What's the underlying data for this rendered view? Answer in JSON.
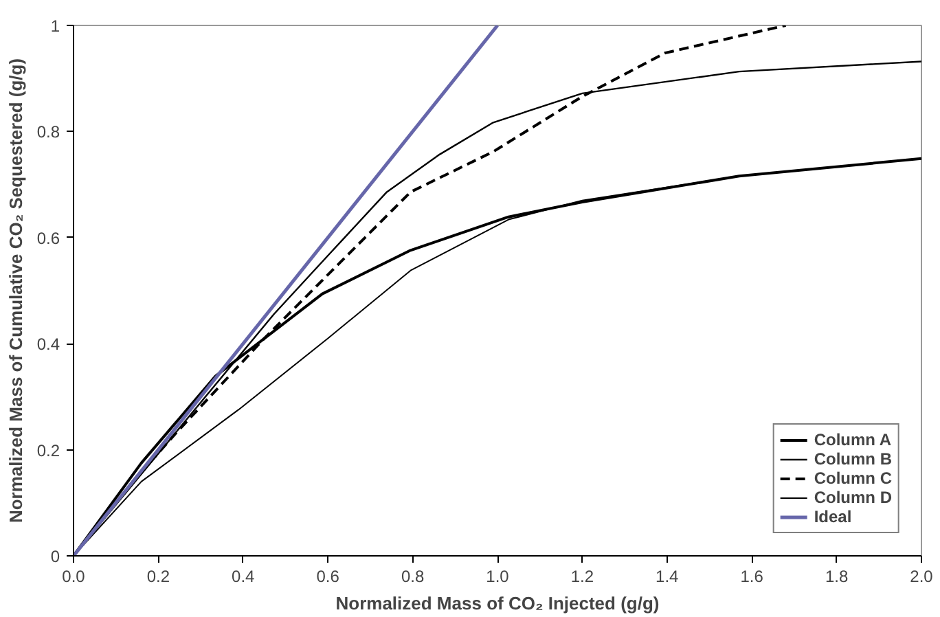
{
  "chart_data": {
    "type": "line",
    "xlabel": "Normalized Mass of CO₂ Injected (g/g)",
    "ylabel": "Normalized Mass of Cumulative CO₂ Sequestered (g/g)",
    "xlim": [
      0,
      2
    ],
    "ylim": [
      0,
      1
    ],
    "xticks": [
      {
        "value": 0,
        "label": "0.0"
      },
      0.2,
      0.4,
      0.6,
      0.8,
      {
        "value": 1,
        "label": "1.0"
      },
      1.2,
      1.4,
      1.6,
      1.8,
      {
        "value": 2,
        "label": "2.0"
      }
    ],
    "yticks": [
      0,
      0.2,
      0.4,
      0.6,
      0.8,
      1
    ],
    "grid": false,
    "legend": "bottom right",
    "series": [
      {
        "name": "Column A",
        "color": "#000000",
        "line_style": "solid",
        "x": [
          0,
          0.16,
          0.335,
          0.587,
          0.795,
          1.026,
          1.2,
          1.57,
          2.0
        ],
        "values": [
          0,
          0.175,
          0.339,
          0.494,
          0.576,
          0.639,
          0.667,
          0.716,
          0.749
        ]
      },
      {
        "name": "Column B",
        "color": "#000000",
        "line_style": "solid",
        "x": [
          0,
          0.473,
          0.6,
          0.739,
          0.864,
          0.99,
          1.2,
          1.57,
          2.0
        ],
        "values": [
          0,
          0.456,
          0.566,
          0.686,
          0.757,
          0.817,
          0.872,
          0.913,
          0.932
        ]
      },
      {
        "name": "Column C",
        "color": "#000000",
        "line_style": "dashed",
        "x": [
          0,
          0.14,
          0.24,
          0.45,
          0.61,
          0.795,
          0.99,
          1.2,
          1.395,
          1.68
        ],
        "values": [
          0,
          0.14,
          0.23,
          0.41,
          0.538,
          0.686,
          0.762,
          0.866,
          0.948,
          1.0
        ]
      },
      {
        "name": "Column D",
        "color": "#000000",
        "line_style": "solid",
        "x": [
          0,
          0.16,
          0.39,
          0.6,
          0.795,
          1.026,
          1.2,
          1.57,
          2.0
        ],
        "values": [
          0,
          0.14,
          0.276,
          0.41,
          0.538,
          0.634,
          0.67,
          0.716,
          0.749
        ]
      },
      {
        "name": "Ideal",
        "color": "#6666aa",
        "line_style": "solid",
        "x": [
          0,
          1
        ],
        "values": [
          0,
          1
        ]
      }
    ]
  }
}
